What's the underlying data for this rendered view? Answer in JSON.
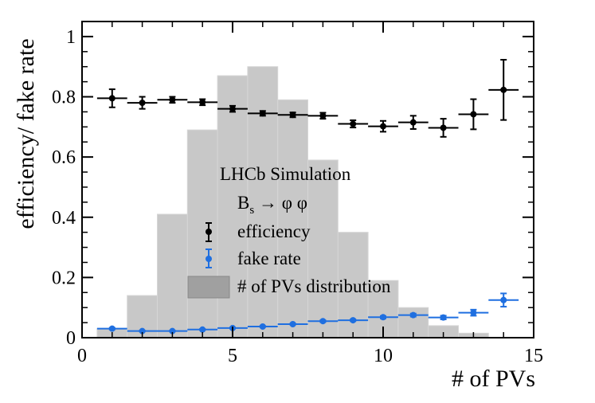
{
  "chart_data": {
    "type": "bar+errorbar",
    "title": "",
    "xlabel": "# of PVs",
    "ylabel": "efficiency/ fake rate",
    "xlim": [
      0,
      15
    ],
    "ylim": [
      0,
      1.05
    ],
    "x_ticks": [
      0,
      5,
      10,
      15
    ],
    "x_tick_labels": [
      "0",
      "5",
      "10",
      "15"
    ],
    "y_ticks": [
      0,
      0.2,
      0.4,
      0.6,
      0.8,
      1
    ],
    "y_tick_labels": [
      "0",
      "0.2",
      "0.4",
      "0.6",
      "0.8",
      "1"
    ],
    "annotation": {
      "title": "LHCb Simulation",
      "process": "Bs → φ φ",
      "process_main": "B",
      "process_sub": "s",
      "process_rest": " → φ φ"
    },
    "legend": {
      "placement": "center",
      "entries": [
        {
          "label": "efficiency",
          "color": "#000000",
          "kind": "errorbar"
        },
        {
          "label": "fake rate",
          "color": "#1f6fe0",
          "kind": "errorbar"
        },
        {
          "label": "# of PVs distribution",
          "color": "#a0a0a0",
          "kind": "filled"
        }
      ]
    },
    "histogram": {
      "name": "# of PVs distribution",
      "bin_edges": [
        0.5,
        1.5,
        2.5,
        3.5,
        4.5,
        5.5,
        6.5,
        7.5,
        8.5,
        9.5,
        10.5,
        11.5,
        12.5,
        13.5
      ],
      "values": [
        0.03,
        0.14,
        0.41,
        0.69,
        0.87,
        0.9,
        0.79,
        0.59,
        0.35,
        0.19,
        0.1,
        0.04,
        0.015
      ],
      "color": "#c8c8c8"
    },
    "series": [
      {
        "name": "efficiency",
        "color": "#000000",
        "x": [
          1,
          2,
          3,
          4,
          5,
          6,
          7,
          8,
          9,
          10,
          11,
          12,
          13,
          14
        ],
        "y": [
          0.795,
          0.78,
          0.79,
          0.782,
          0.76,
          0.745,
          0.74,
          0.737,
          0.71,
          0.702,
          0.715,
          0.697,
          0.742,
          0.823
        ],
        "yerr": [
          0.03,
          0.02,
          0.01,
          0.01,
          0.01,
          0.008,
          0.008,
          0.01,
          0.012,
          0.018,
          0.022,
          0.03,
          0.05,
          0.1
        ],
        "xerr": 0.5
      },
      {
        "name": "fake rate",
        "color": "#1f6fe0",
        "x": [
          1,
          2,
          3,
          4,
          5,
          6,
          7,
          8,
          9,
          10,
          11,
          12,
          13,
          14
        ],
        "y": [
          0.03,
          0.022,
          0.022,
          0.027,
          0.032,
          0.037,
          0.045,
          0.055,
          0.058,
          0.068,
          0.075,
          0.067,
          0.083,
          0.125
        ],
        "yerr": [
          0.003,
          0.002,
          0.002,
          0.002,
          0.002,
          0.002,
          0.002,
          0.003,
          0.003,
          0.004,
          0.005,
          0.006,
          0.01,
          0.022
        ],
        "xerr": 0.5
      }
    ]
  }
}
